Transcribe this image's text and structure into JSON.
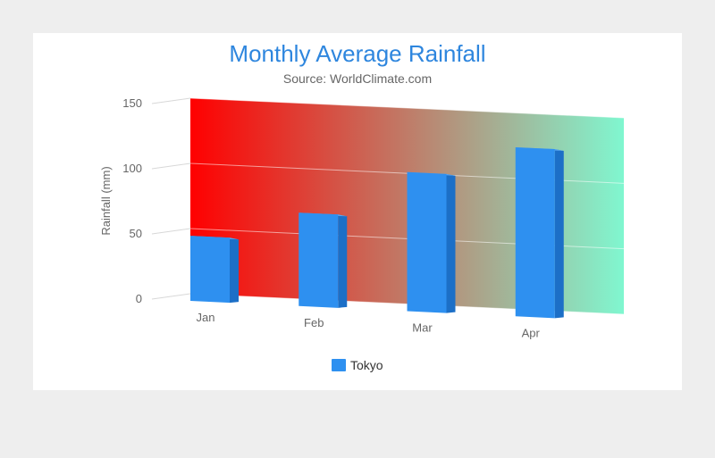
{
  "chart_data": {
    "type": "bar",
    "title": "Monthly Average Rainfall",
    "subtitle": "Source: WorldClimate.com",
    "categories": [
      "Jan",
      "Feb",
      "Mar",
      "Apr"
    ],
    "series": [
      {
        "name": "Tokyo",
        "values": [
          49.9,
          71.5,
          106.4,
          129.2
        ]
      }
    ],
    "ylabel": "Rainfall (mm)",
    "yticks": [
      "0",
      "50",
      "100",
      "150"
    ],
    "ylim": [
      0,
      150
    ],
    "grid": true,
    "legend": "bottom-center",
    "colors": {
      "bar": "#2e90f0",
      "bar_side": "#1c6fc7",
      "bar_top": "#5aa9f5",
      "backdrop_start": "#ff0000",
      "backdrop_end": "#80f7d0"
    }
  }
}
